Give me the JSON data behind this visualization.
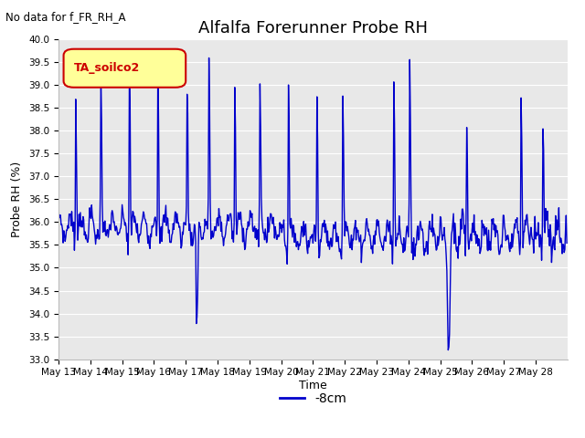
{
  "title": "Alfalfa Forerunner Probe RH",
  "top_left_note": "No data for f_FR_RH_A",
  "ylabel": "Probe RH (%)",
  "xlabel": "Time",
  "legend_label": "-8cm",
  "legend_color": "#0000cc",
  "line_color": "#0000cc",
  "bg_color": "#e8e8e8",
  "fig_bg_color": "#ffffff",
  "ylim": [
    33.0,
    40.0
  ],
  "yticks": [
    33.0,
    33.5,
    34.0,
    34.5,
    35.0,
    35.5,
    36.0,
    36.5,
    37.0,
    37.5,
    38.0,
    38.5,
    39.0,
    39.5,
    40.0
  ],
  "legend_box_facecolor": "#ffff99",
  "legend_box_edgecolor": "#cc0000",
  "legend_text_color": "#cc0000",
  "legend_label_text": "TA_soilco2",
  "title_fontsize": 13,
  "label_fontsize": 9,
  "tick_fontsize": 7.5,
  "note_fontsize": 8.5,
  "grid_color": "#ffffff",
  "line_width": 1.0
}
